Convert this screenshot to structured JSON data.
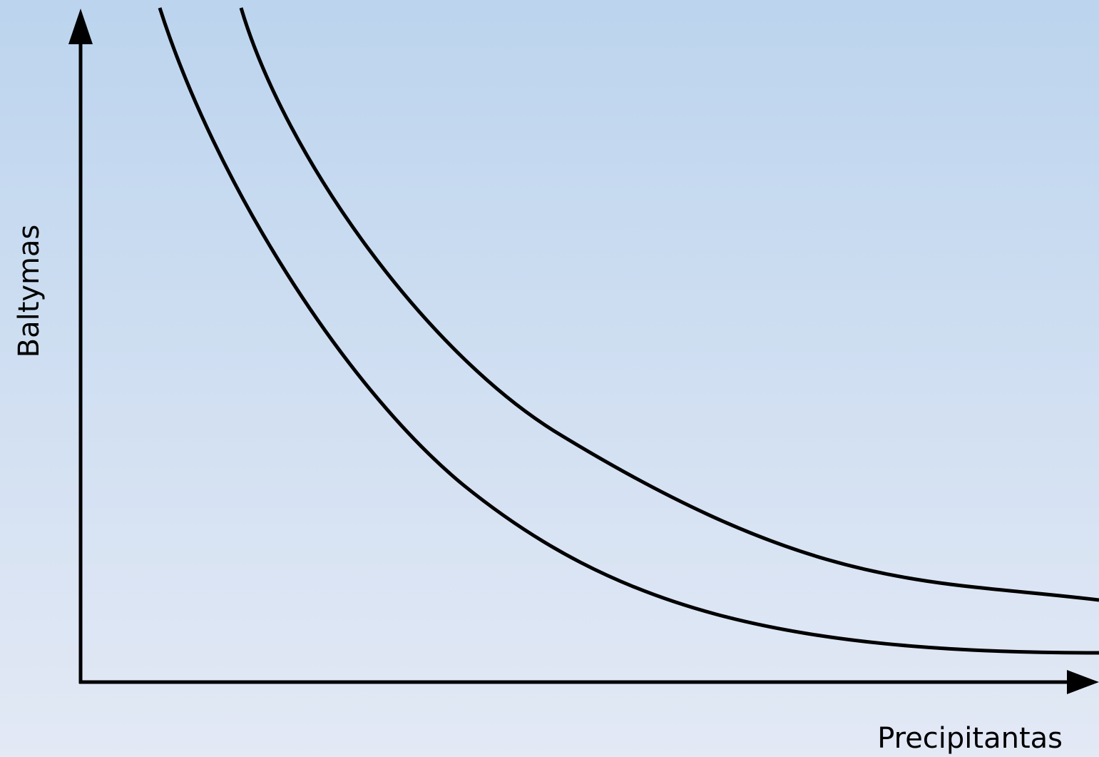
{
  "diagram": {
    "x_axis_label": "Precipitantas",
    "y_axis_label": "Baltymas",
    "line_color": "#000000",
    "background_top_color": "#bcd4ee",
    "background_bottom_color": "#e3e9f5"
  }
}
